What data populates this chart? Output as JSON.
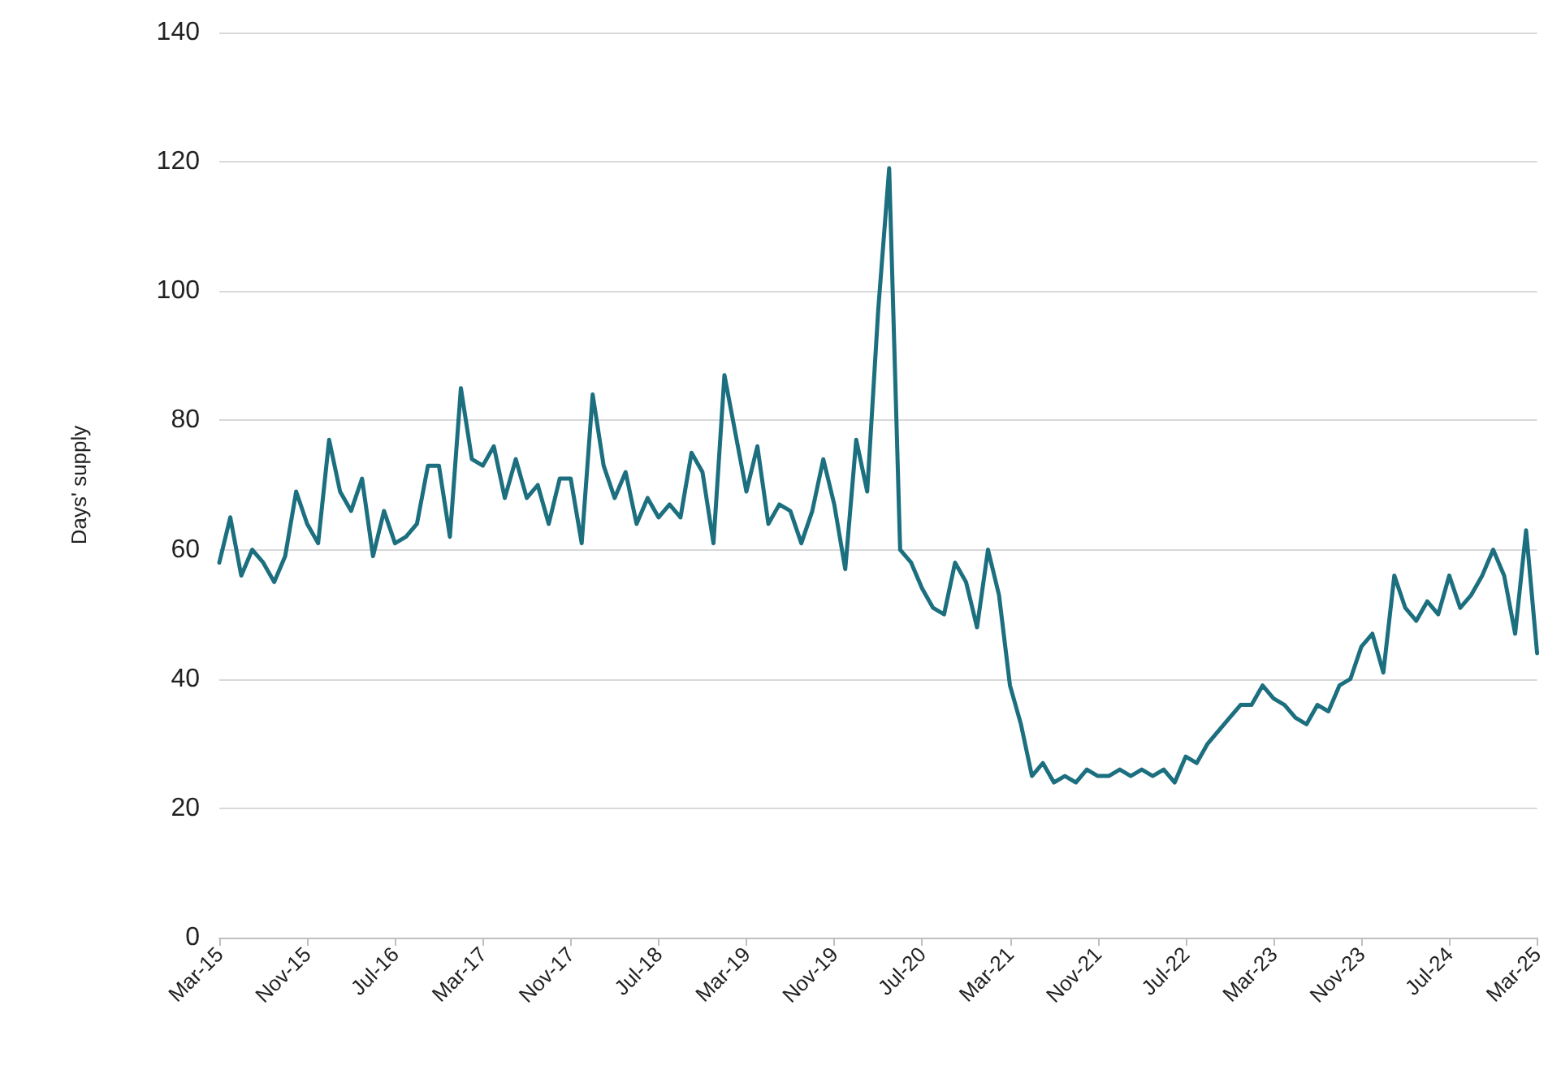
{
  "chart_data": {
    "type": "line",
    "ylabel": "Days' supply",
    "categories": [
      "Mar-15",
      null,
      null,
      null,
      null,
      null,
      null,
      null,
      "Nov-15",
      null,
      null,
      null,
      null,
      null,
      null,
      null,
      "Jul-16",
      null,
      null,
      null,
      null,
      null,
      null,
      null,
      "Mar-17",
      null,
      null,
      null,
      null,
      null,
      null,
      null,
      "Nov-17",
      null,
      null,
      null,
      null,
      null,
      null,
      null,
      "Jul-18",
      null,
      null,
      null,
      null,
      null,
      null,
      null,
      "Mar-19",
      null,
      null,
      null,
      null,
      null,
      null,
      null,
      "Nov-19",
      null,
      null,
      null,
      null,
      null,
      null,
      null,
      "Jul-20",
      null,
      null,
      null,
      null,
      null,
      null,
      null,
      "Mar-21",
      null,
      null,
      null,
      null,
      null,
      null,
      null,
      "Nov-21",
      null,
      null,
      null,
      null,
      null,
      null,
      null,
      "Jul-22",
      null,
      null,
      null,
      null,
      null,
      null,
      null,
      "Mar-23",
      null,
      null,
      null,
      null,
      null,
      null,
      null,
      "Nov-23",
      null,
      null,
      null,
      null,
      null,
      null,
      null,
      "Jul-24",
      null,
      null,
      null,
      null,
      null,
      null,
      null,
      "Mar-25"
    ],
    "series": [
      {
        "color": "#1c6f7f",
        "values": [
          58,
          65,
          56,
          60,
          58,
          55,
          59,
          69,
          64,
          61,
          77,
          69,
          66,
          71,
          59,
          66,
          61,
          62,
          64,
          73,
          73,
          62,
          85,
          74,
          73,
          76,
          68,
          74,
          68,
          70,
          64,
          71,
          71,
          61,
          84,
          73,
          68,
          72,
          64,
          68,
          65,
          67,
          65,
          75,
          72,
          61,
          87,
          78,
          69,
          76,
          64,
          67,
          66,
          61,
          66,
          74,
          67,
          57,
          77,
          69,
          97,
          119,
          60,
          58,
          54,
          51,
          50,
          58,
          55,
          48,
          60,
          53,
          39,
          33,
          25,
          27,
          24,
          25,
          24,
          26,
          25,
          25,
          26,
          25,
          26,
          25,
          26,
          24,
          28,
          27,
          30,
          32,
          34,
          36,
          36,
          39,
          37,
          36,
          34,
          33,
          36,
          35,
          39,
          40,
          45,
          47,
          41,
          56,
          51,
          49,
          52,
          50,
          56,
          51,
          53,
          56,
          60,
          56,
          47,
          63,
          44
        ]
      }
    ],
    "ylim": [
      0,
      140
    ],
    "yticks": [
      0,
      20,
      40,
      60,
      80,
      100,
      120,
      140
    ],
    "grid": "y",
    "marker": "none",
    "line_style": "solid"
  }
}
